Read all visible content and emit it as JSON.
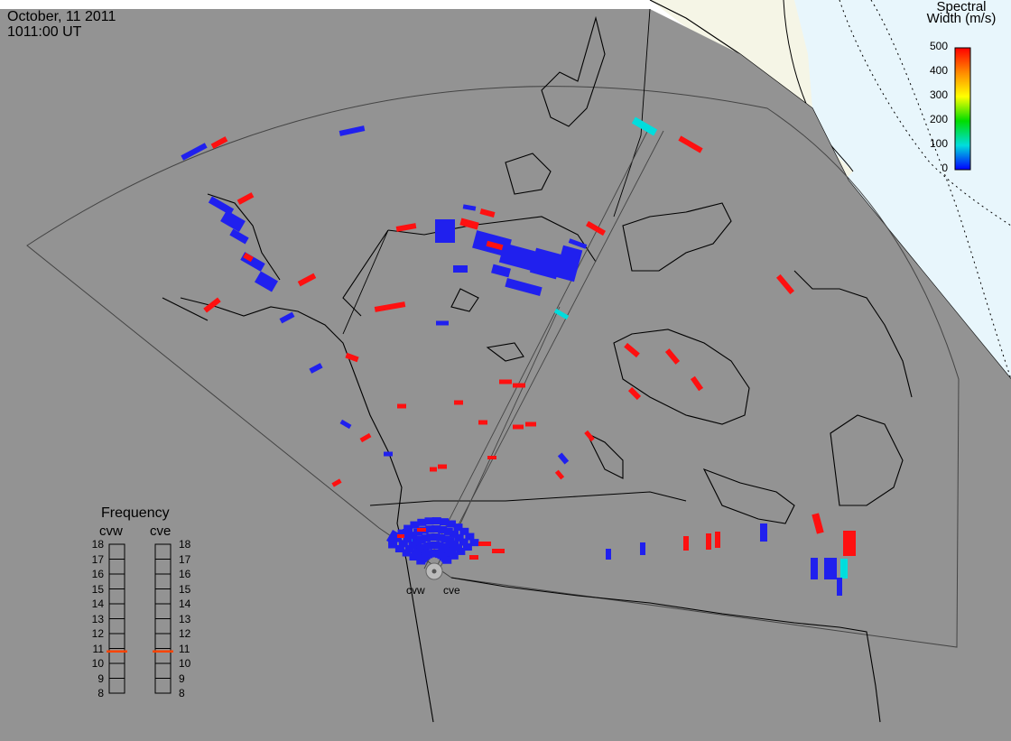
{
  "header": {
    "date": "October, 11 2011",
    "time": "1011:00 UT"
  },
  "colorbar": {
    "title_line1": "Spectral",
    "title_line2": "Width (m/s)",
    "ticks": [
      "500",
      "400",
      "300",
      "200",
      "100",
      "0"
    ],
    "colors": [
      "#ff0000",
      "#ff8800",
      "#ffff00",
      "#00dd00",
      "#00dddd",
      "#0000ff"
    ]
  },
  "frequency": {
    "title": "Frequency",
    "stations": [
      {
        "code": "cvw",
        "value_mhz": 10.8
      },
      {
        "code": "cve",
        "value_mhz": 10.8
      }
    ],
    "scale": [
      "18",
      "17",
      "16",
      "15",
      "14",
      "13",
      "12",
      "11",
      "10",
      "9",
      "8"
    ],
    "indicator_color": "#ff4400"
  },
  "radar_sites": [
    {
      "code": "cvw"
    },
    {
      "code": "cve"
    }
  ],
  "colors": {
    "land_ocean": "#939393",
    "polar_cap_land": "#f5f5e6",
    "polar_cap_ocean": "#e8f6fc",
    "low_width": "#2020ee",
    "high_width": "#ff1010",
    "mid_width": "#00dddd"
  }
}
